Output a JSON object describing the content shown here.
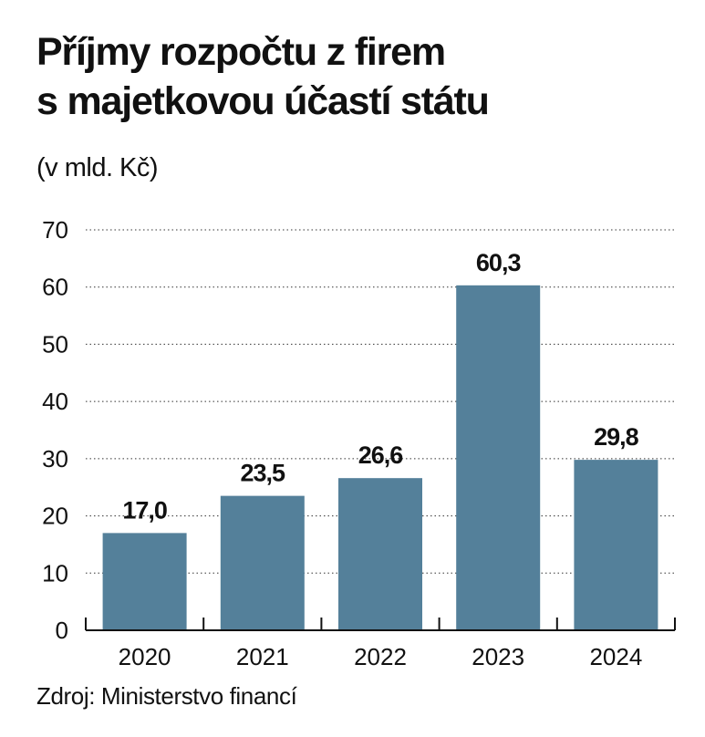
{
  "title_line1": "Příjmy rozpočtu z firem",
  "title_line2": "s majetkovou účastí státu",
  "unit_note": "(v mld. Kč)",
  "source": "Zdroj: Ministerstvo financí",
  "chart_data": {
    "type": "bar",
    "categories": [
      "2020",
      "2021",
      "2022",
      "2023",
      "2024"
    ],
    "values": [
      17.0,
      23.5,
      26.6,
      60.3,
      29.8
    ],
    "value_labels": [
      "17,0",
      "23,5",
      "26,6",
      "60,3",
      "29,8"
    ],
    "yticks": [
      0,
      10,
      20,
      30,
      40,
      50,
      60,
      70
    ],
    "ylim": [
      0,
      70
    ],
    "grid": "dotted horizontal",
    "bar_color": "#54809a"
  }
}
